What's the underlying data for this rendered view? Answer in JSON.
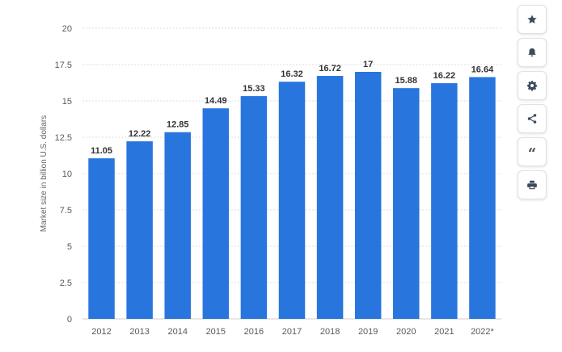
{
  "chart_data": {
    "type": "bar",
    "title": "",
    "xlabel": "",
    "ylabel": "Market size in billion U.S. dollars",
    "categories": [
      "2012",
      "2013",
      "2014",
      "2015",
      "2016",
      "2017",
      "2018",
      "2019",
      "2020",
      "2021",
      "2022*"
    ],
    "values": [
      11.05,
      12.22,
      12.85,
      14.49,
      15.33,
      16.32,
      16.72,
      17,
      15.88,
      16.22,
      16.64
    ],
    "value_labels": [
      "11.05",
      "12.22",
      "12.85",
      "14.49",
      "15.33",
      "16.32",
      "16.72",
      "17",
      "15.88",
      "16.22",
      "16.64"
    ],
    "ylim": [
      0,
      20
    ],
    "y_ticks": [
      0,
      2.5,
      5,
      7.5,
      10,
      12.5,
      15,
      17.5,
      20
    ],
    "y_tick_labels": [
      "0",
      "2.5",
      "5",
      "7.5",
      "10",
      "12.5",
      "15",
      "17.5",
      "20"
    ],
    "grid": true,
    "legend": "none",
    "bar_color": "#2876dd"
  },
  "toolbar": {
    "buttons": [
      {
        "name": "favorite-button",
        "icon": "star-icon"
      },
      {
        "name": "notification-button",
        "icon": "bell-icon"
      },
      {
        "name": "settings-button",
        "icon": "gear-icon"
      },
      {
        "name": "share-button",
        "icon": "share-icon"
      },
      {
        "name": "cite-button",
        "icon": "quote-icon",
        "glyph": "“"
      },
      {
        "name": "print-button",
        "icon": "printer-icon"
      }
    ],
    "icon_color": "#3c4a5a"
  }
}
